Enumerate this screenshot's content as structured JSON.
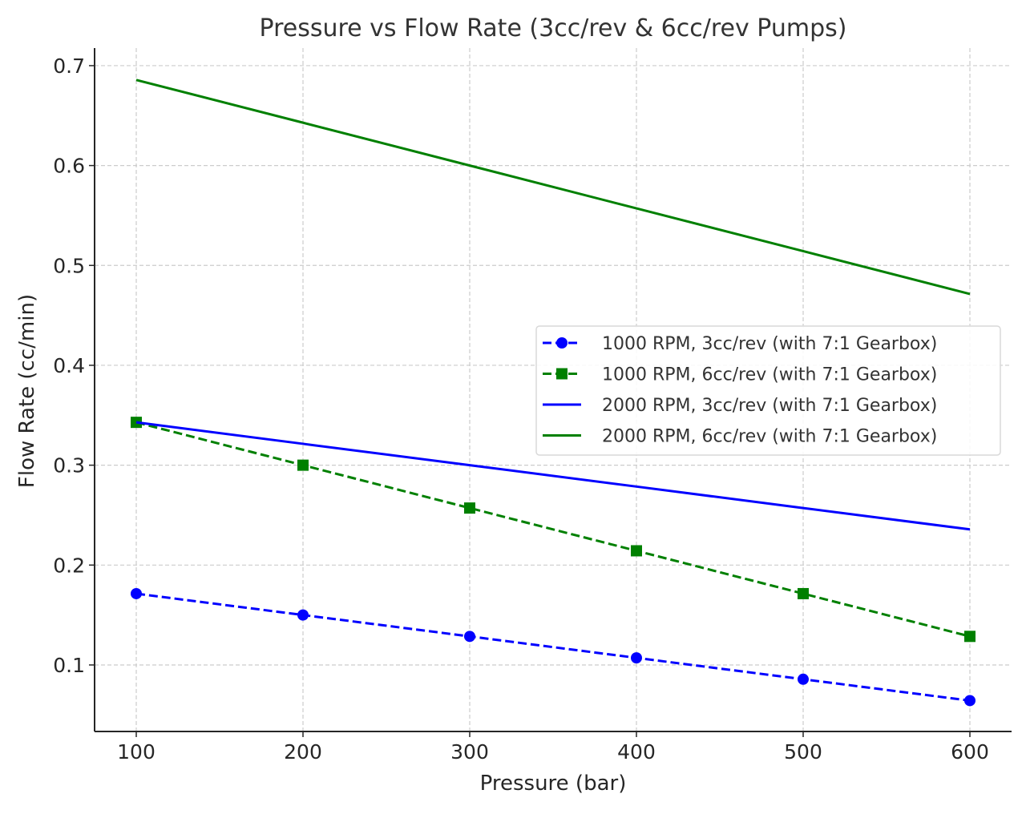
{
  "chart_data": {
    "type": "line",
    "title": "Pressure vs Flow Rate (3cc/rev & 6cc/rev Pumps)",
    "xlabel": "Pressure (bar)",
    "ylabel": "Flow Rate (cc/min)",
    "x": [
      100,
      200,
      300,
      400,
      500,
      600
    ],
    "xlim": [
      75,
      625
    ],
    "ylim": [
      0.0334,
      0.7176
    ],
    "xticks": [
      100,
      200,
      300,
      400,
      500,
      600
    ],
    "yticks": [
      0.1,
      0.2,
      0.3,
      0.4,
      0.5,
      0.6,
      0.7
    ],
    "xtick_labels": [
      "100",
      "200",
      "300",
      "400",
      "500",
      "600"
    ],
    "ytick_labels": [
      "0.1",
      "0.2",
      "0.3",
      "0.4",
      "0.5",
      "0.6",
      "0.7"
    ],
    "grid": true,
    "legend_position": "center-right",
    "series": [
      {
        "name": "1000 RPM, 3cc/rev (with 7:1 Gearbox)",
        "color": "#0000ff",
        "style": "dashed",
        "marker": "circle",
        "values": [
          0.1714,
          0.15,
          0.1286,
          0.1071,
          0.0857,
          0.0643
        ]
      },
      {
        "name": "1000 RPM, 6cc/rev (with 7:1 Gearbox)",
        "color": "#008000",
        "style": "dashed",
        "marker": "square",
        "values": [
          0.3429,
          0.3,
          0.2571,
          0.2143,
          0.1714,
          0.1286
        ]
      },
      {
        "name": "2000 RPM, 3cc/rev (with 7:1 Gearbox)",
        "color": "#0000ff",
        "style": "solid",
        "marker": "none",
        "values": [
          0.3429,
          0.3214,
          0.3,
          0.2786,
          0.2571,
          0.2357
        ]
      },
      {
        "name": "2000 RPM, 6cc/rev (with 7:1 Gearbox)",
        "color": "#008000",
        "style": "solid",
        "marker": "none",
        "values": [
          0.6857,
          0.6429,
          0.6,
          0.5571,
          0.5143,
          0.4714
        ]
      }
    ]
  }
}
